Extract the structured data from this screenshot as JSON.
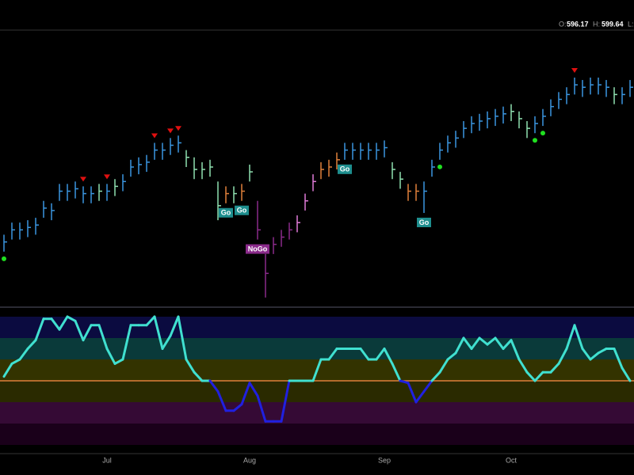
{
  "header": {
    "open_label": "O:",
    "open": 596.17,
    "high_label": "H:",
    "high": 599.64,
    "low_label": "L:"
  },
  "chart_data": {
    "type": "ohlc",
    "ylim": [
      505,
      618
    ],
    "close": [
      531,
      536,
      536,
      537,
      538,
      545,
      544,
      552,
      552,
      553,
      551,
      551,
      552,
      552,
      554,
      556,
      562,
      563,
      564,
      569,
      569,
      571,
      572,
      566,
      561,
      561,
      562,
      546,
      551,
      551,
      552,
      560,
      536,
      518,
      530,
      533,
      536,
      539,
      548,
      556,
      561,
      562,
      565,
      569,
      569,
      569,
      569,
      569,
      570,
      561,
      557,
      552,
      552,
      552,
      562,
      569,
      572,
      574,
      578,
      580,
      581,
      582,
      583,
      584,
      585,
      582,
      578,
      580,
      583,
      587,
      590,
      592,
      596,
      595,
      596,
      596,
      595,
      592,
      592,
      595
    ],
    "high": [
      534,
      539,
      539,
      540,
      541,
      548,
      547,
      555,
      555,
      556,
      554,
      554,
      555,
      555,
      557,
      559,
      565,
      566,
      567,
      572,
      572,
      574,
      575,
      569,
      566,
      564,
      565,
      556,
      554,
      554,
      555,
      563,
      548,
      526,
      533,
      536,
      539,
      542,
      551,
      559,
      564,
      565,
      568,
      572,
      572,
      572,
      572,
      572,
      573,
      564,
      560,
      555,
      555,
      556,
      565,
      572,
      575,
      577,
      581,
      583,
      584,
      585,
      586,
      587,
      588,
      585,
      581,
      583,
      586,
      590,
      593,
      595,
      599,
      598,
      599,
      599,
      598,
      595,
      595,
      598
    ],
    "low": [
      527,
      532,
      532,
      533,
      534,
      541,
      540,
      548,
      548,
      549,
      547,
      547,
      548,
      548,
      550,
      552,
      558,
      559,
      560,
      565,
      565,
      567,
      568,
      562,
      557,
      557,
      558,
      540,
      547,
      547,
      548,
      556,
      532,
      508,
      526,
      529,
      532,
      535,
      544,
      552,
      557,
      558,
      561,
      565,
      565,
      565,
      565,
      565,
      566,
      557,
      553,
      548,
      548,
      543,
      558,
      565,
      568,
      570,
      574,
      576,
      577,
      578,
      579,
      580,
      581,
      578,
      574,
      576,
      579,
      583,
      586,
      588,
      592,
      591,
      592,
      592,
      591,
      588,
      588,
      591
    ],
    "colors": [
      "#3a96e0",
      "#3a96e0",
      "#3a96e0",
      "#3a96e0",
      "#3a96e0",
      "#3a96e0",
      "#3a96e0",
      "#3a96e0",
      "#3a96e0",
      "#3a96e0",
      "#3a96e0",
      "#3a96e0",
      "#8fe0b0",
      "#3a96e0",
      "#8fe0b0",
      "#3a96e0",
      "#3a96e0",
      "#3a96e0",
      "#3a96e0",
      "#3a96e0",
      "#3a96e0",
      "#3a96e0",
      "#3a96e0",
      "#8fe0b0",
      "#8fe0b0",
      "#8fe0b0",
      "#8fe0b0",
      "#8fe0b0",
      "#e0803a",
      "#8fe0b0",
      "#e0803a",
      "#8fe0b0",
      "#8a2a8a",
      "#8a2a8a",
      "#8a2a8a",
      "#8a2a8a",
      "#8a2a8a",
      "#e07ad8",
      "#e07ad8",
      "#e07ad8",
      "#e0803a",
      "#e0803a",
      "#e0803a",
      "#3a96e0",
      "#3a96e0",
      "#3a96e0",
      "#3a96e0",
      "#3a96e0",
      "#3a96e0",
      "#8fe0b0",
      "#8fe0b0",
      "#e0803a",
      "#e0803a",
      "#3a96e0",
      "#3a96e0",
      "#3a96e0",
      "#3a96e0",
      "#3a96e0",
      "#3a96e0",
      "#3a96e0",
      "#3a96e0",
      "#3a96e0",
      "#3a96e0",
      "#3a96e0",
      "#8fe0b0",
      "#8fe0b0",
      "#8fe0b0",
      "#3a96e0",
      "#3a96e0",
      "#3a96e0",
      "#3a96e0",
      "#3a96e0",
      "#3a96e0",
      "#3a96e0",
      "#3a96e0",
      "#3a96e0",
      "#3a96e0",
      "#8fe0b0",
      "#3a96e0",
      "#3a96e0"
    ],
    "down_markers": [
      10,
      13,
      19,
      21,
      22,
      72
    ],
    "down_color": "#e01010",
    "up_markers": [
      0,
      55,
      67,
      68
    ],
    "up_color": "#20e020",
    "annotations": [
      {
        "text": "Go",
        "index": 28
      },
      {
        "text": "Go",
        "index": 30
      },
      {
        "text": "NoGo",
        "index": 32
      },
      {
        "text": "Go",
        "index": 43
      },
      {
        "text": "Go",
        "index": 53
      }
    ],
    "months": [
      {
        "label": "Jul",
        "index": 13
      },
      {
        "label": "Aug",
        "index": 31
      },
      {
        "label": "Sep",
        "index": 48
      },
      {
        "label": "Oct",
        "index": 64
      }
    ],
    "oscillator": [
      0.2,
      0.8,
      1.0,
      1.5,
      1.9,
      2.9,
      2.9,
      2.4,
      3.0,
      2.8,
      1.9,
      2.6,
      2.6,
      1.5,
      0.8,
      1.0,
      2.6,
      2.6,
      2.6,
      3.0,
      1.5,
      2.1,
      3.0,
      1.0,
      0.4,
      0,
      0,
      -0.5,
      -1.4,
      -1.4,
      -1.1,
      -0.1,
      -0.7,
      -1.9,
      -1.9,
      -1.9,
      0,
      0,
      0,
      0,
      1.0,
      1.0,
      1.5,
      1.5,
      1.5,
      1.5,
      1.0,
      1.0,
      1.5,
      0.8,
      0,
      -0.1,
      -1.0,
      -0.5,
      0,
      0.4,
      1.0,
      1.3,
      2.0,
      1.5,
      2.0,
      1.7,
      2.0,
      1.5,
      1.9,
      1.0,
      0.4,
      0,
      0.4,
      0.4,
      0.8,
      1.5,
      2.6,
      1.5,
      1.0,
      1.3,
      1.5,
      1.5,
      0.6,
      0
    ],
    "osc_lim": [
      -3,
      3
    ],
    "osc_ticks": [
      3,
      2,
      1,
      0,
      -1,
      -2,
      -3
    ],
    "osc_bands": [
      "#0b0b40",
      "#0a3a3a",
      "#333300",
      "#2a2a00",
      "#350a35",
      "#1a001a"
    ],
    "positive_color": "#40e0d0",
    "negative_color": "#2020e0",
    "zero_color": "#e0803a"
  }
}
